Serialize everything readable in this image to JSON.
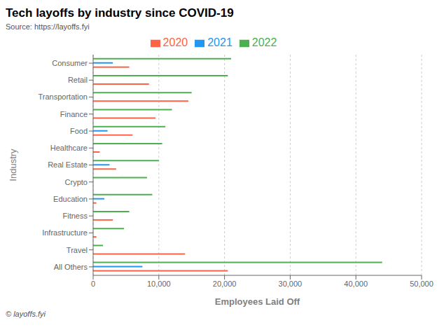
{
  "chart_data": {
    "type": "bar",
    "orientation": "horizontal",
    "title": "Tech layoffs by industry since COVID-19",
    "subtitle": "Source: https://layoffs.fyi",
    "annotations": [
      "© layoffs.fyi"
    ],
    "xlabel": "Employees Laid Off",
    "ylabel": "Industry",
    "categories": [
      "All Others",
      "Travel",
      "Infrastructure",
      "Fitness",
      "Education",
      "Crypto",
      "Real Estate",
      "Healthcare",
      "Food",
      "Finance",
      "Transportation",
      "Retail",
      "Consumer"
    ],
    "series": [
      {
        "name": "2022",
        "color": "#4CAF50",
        "values": [
          44000,
          1500,
          4700,
          5500,
          9000,
          8200,
          10000,
          10500,
          11000,
          12000,
          15000,
          20500,
          21000
        ]
      },
      {
        "name": "2021",
        "color": "#2196F3",
        "values": [
          7500,
          0,
          0,
          0,
          1700,
          0,
          2500,
          0,
          2200,
          0,
          0,
          0,
          3000
        ]
      },
      {
        "name": "2020",
        "color": "#FF6347",
        "values": [
          20500,
          14000,
          500,
          3000,
          500,
          0,
          3500,
          1000,
          6000,
          9500,
          14500,
          8500,
          5500
        ]
      }
    ],
    "xlim": [
      0,
      50000
    ],
    "xticks": [
      0,
      {
        "value": 10000,
        "label": "10,000"
      },
      {
        "value": 20000,
        "label": "20,000"
      },
      {
        "value": 30000,
        "label": "30,000"
      },
      {
        "value": 40000,
        "label": "40,000"
      },
      {
        "value": 50000,
        "label": "50,000"
      }
    ],
    "grid": true,
    "legend": "top"
  }
}
